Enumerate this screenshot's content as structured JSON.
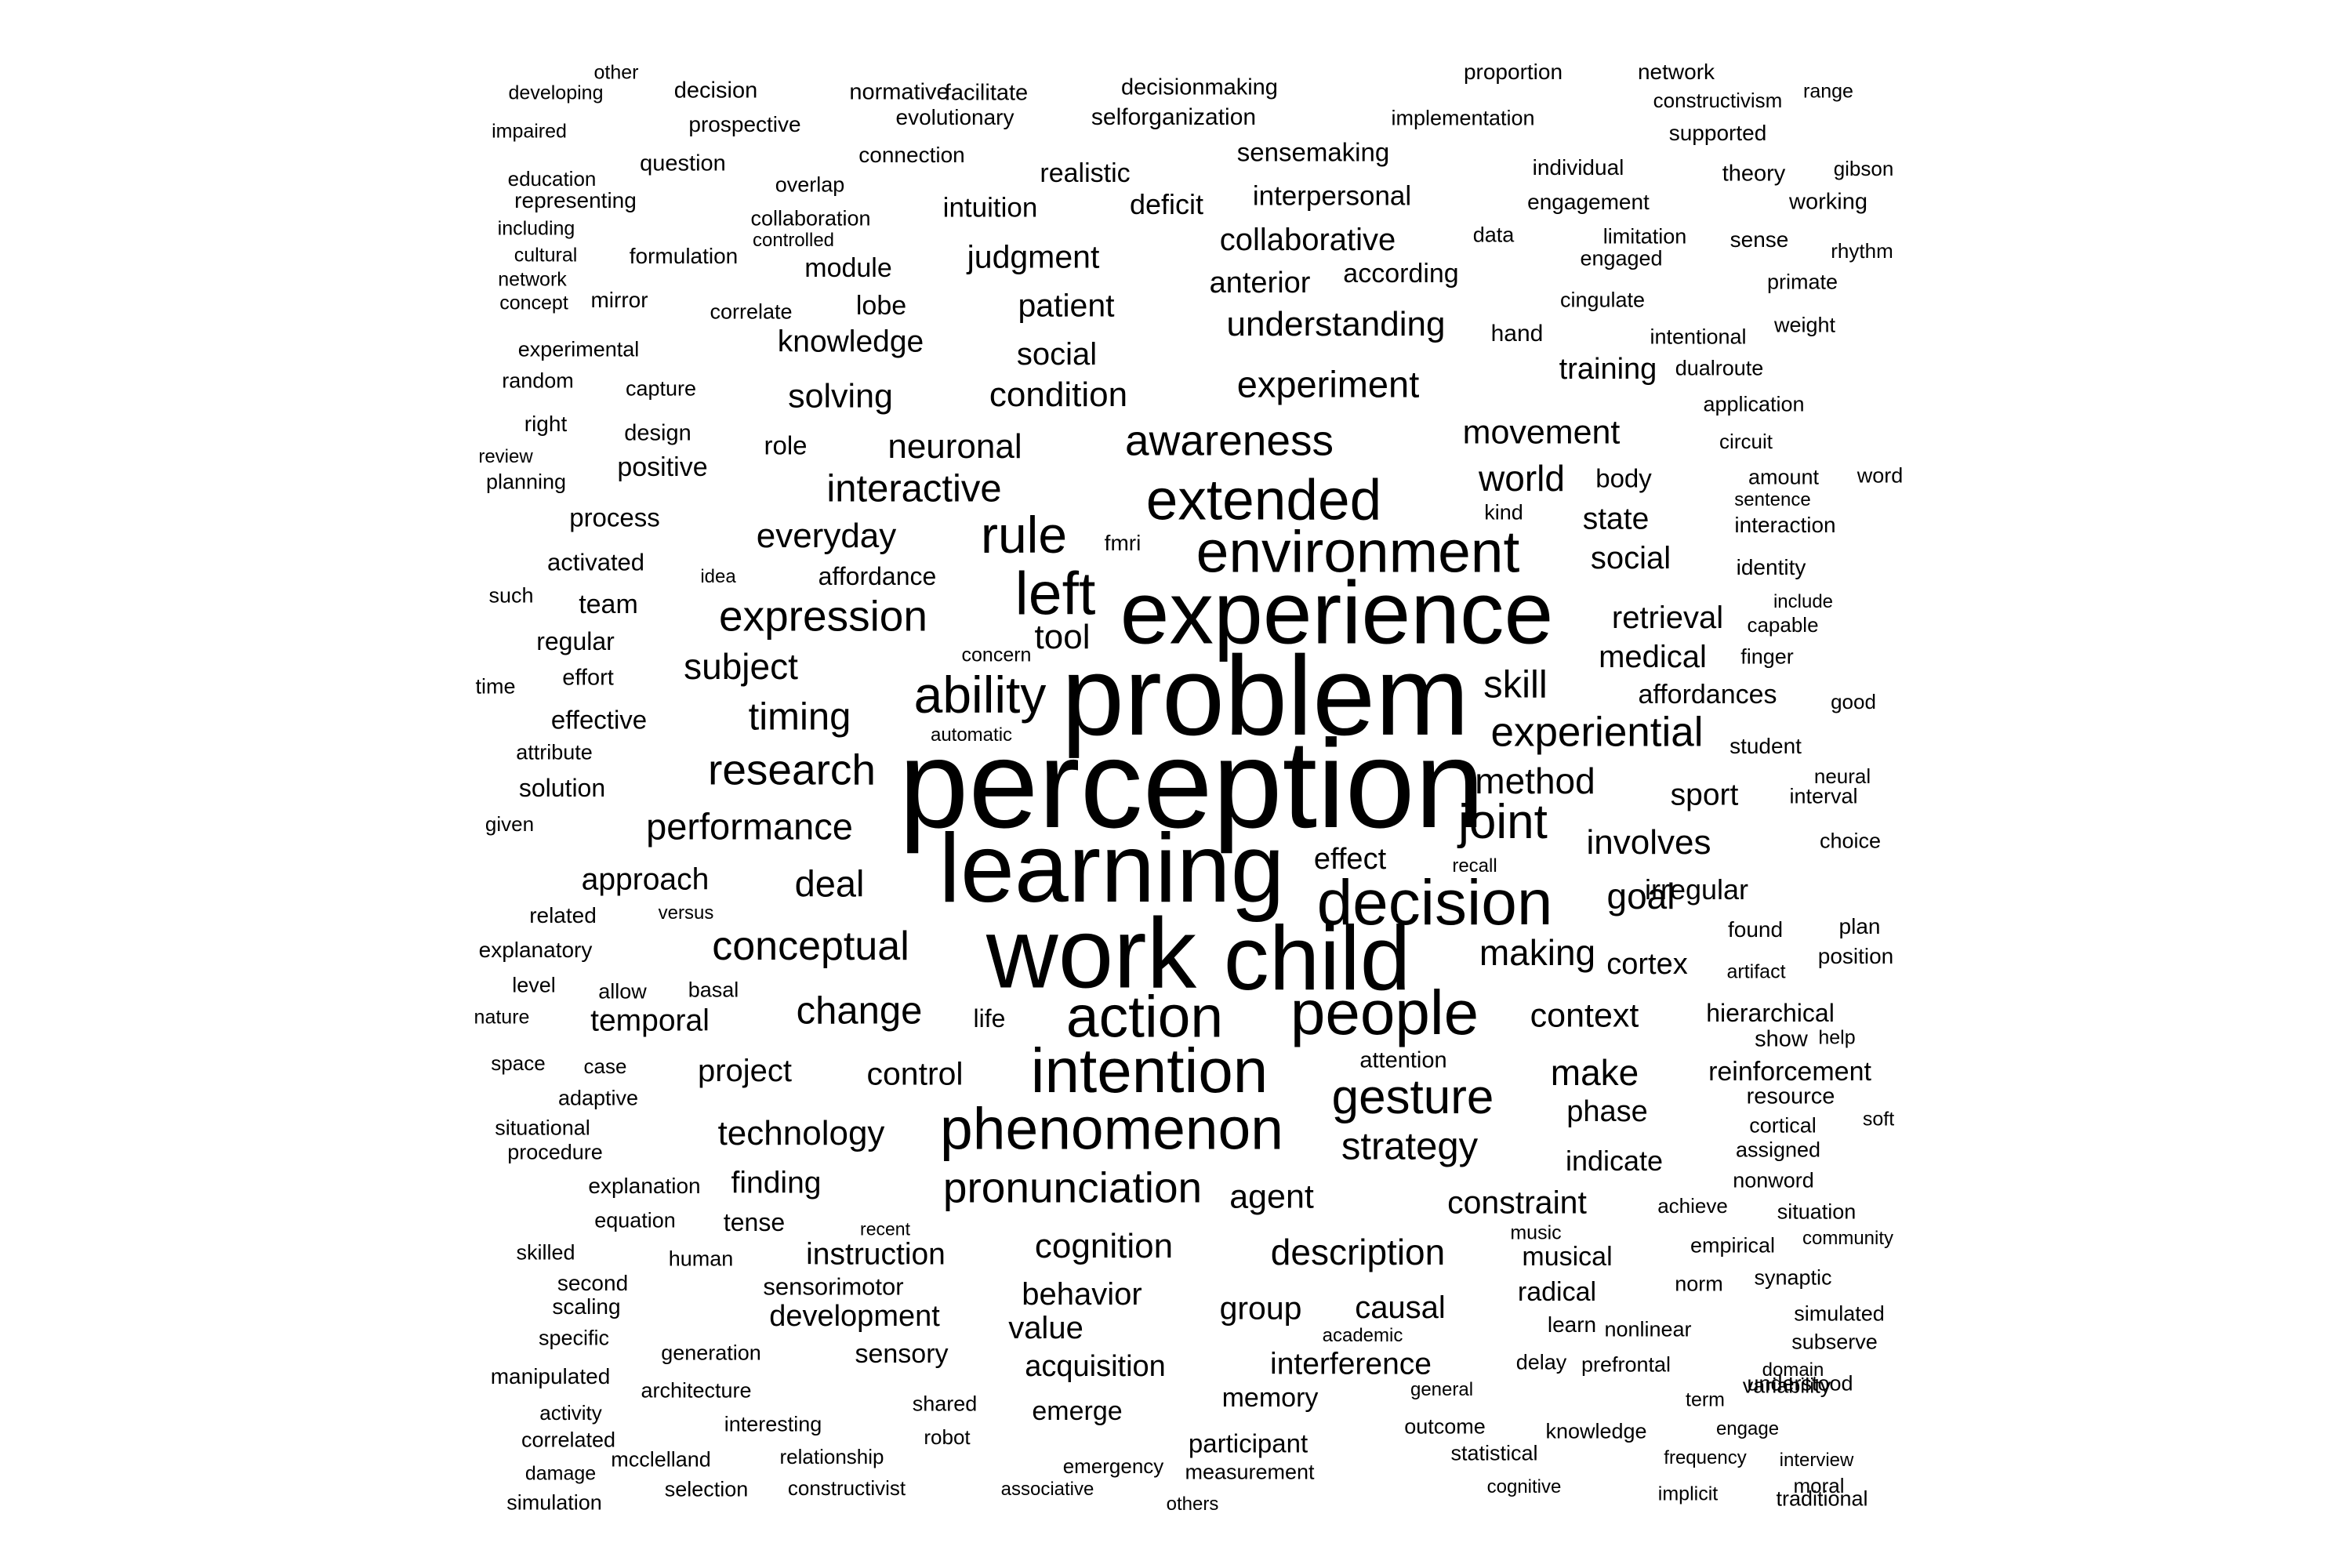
{
  "words": [
    {
      "text": "perception",
      "weight": 100
    },
    {
      "text": "learning",
      "weight": 88
    },
    {
      "text": "problem",
      "weight": 95
    },
    {
      "text": "work",
      "weight": 89
    },
    {
      "text": "child",
      "weight": 85
    },
    {
      "text": "experience",
      "weight": 84
    },
    {
      "text": "phenomenon",
      "weight": 68
    },
    {
      "text": "action",
      "weight": 68
    },
    {
      "text": "intention",
      "weight": 70
    },
    {
      "text": "people",
      "weight": 70
    },
    {
      "text": "decision",
      "weight": 71
    },
    {
      "text": "environment",
      "weight": 68
    },
    {
      "text": "extended",
      "weight": 67
    },
    {
      "text": "left",
      "weight": 69
    },
    {
      "text": "ability",
      "weight": 63
    },
    {
      "text": "rule",
      "weight": 63
    },
    {
      "text": "joint",
      "weight": 61
    },
    {
      "text": "gesture",
      "weight": 61
    },
    {
      "text": "pronunciation",
      "weight": 57
    },
    {
      "text": "awareness",
      "weight": 57
    },
    {
      "text": "expression",
      "weight": 57
    },
    {
      "text": "experiential",
      "weight": 56
    },
    {
      "text": "research",
      "weight": 57
    },
    {
      "text": "conceptual",
      "weight": 55
    },
    {
      "text": "change",
      "weight": 53
    },
    {
      "text": "strategy",
      "weight": 53
    },
    {
      "text": "performance",
      "weight": 52
    },
    {
      "text": "interactive",
      "weight": 53
    },
    {
      "text": "timing",
      "weight": 53
    },
    {
      "text": "technology",
      "weight": 50
    },
    {
      "text": "cognition",
      "weight": 50
    },
    {
      "text": "description",
      "weight": 51
    },
    {
      "text": "experiment",
      "weight": 52
    },
    {
      "text": "understanding",
      "weight": 50
    },
    {
      "text": "subject",
      "weight": 51
    },
    {
      "text": "method",
      "weight": 51
    },
    {
      "text": "neuronal",
      "weight": 50
    },
    {
      "text": "everyday",
      "weight": 50
    },
    {
      "text": "condition",
      "weight": 50
    },
    {
      "text": "solving",
      "weight": 49
    },
    {
      "text": "skill",
      "weight": 53
    },
    {
      "text": "deal",
      "weight": 52
    },
    {
      "text": "making",
      "weight": 51
    },
    {
      "text": "context",
      "weight": 49
    },
    {
      "text": "make",
      "weight": 51
    },
    {
      "text": "goal",
      "weight": 51
    },
    {
      "text": "involves",
      "weight": 50
    },
    {
      "text": "movement",
      "weight": 49
    },
    {
      "text": "world",
      "weight": 51
    },
    {
      "text": "control",
      "weight": 48
    },
    {
      "text": "project",
      "weight": 47
    },
    {
      "text": "agent",
      "weight": 49
    },
    {
      "text": "constraint",
      "weight": 48
    },
    {
      "text": "behavior",
      "weight": 47
    },
    {
      "text": "value",
      "weight": 47
    },
    {
      "text": "group",
      "weight": 48
    },
    {
      "text": "causal",
      "weight": 47
    },
    {
      "text": "judgment",
      "weight": 48
    },
    {
      "text": "patient",
      "weight": 48
    },
    {
      "text": "social",
      "weight": 47
    },
    {
      "text": "collaborative",
      "weight": 47
    },
    {
      "text": "knowledge",
      "weight": 46
    },
    {
      "text": "approach",
      "weight": 46
    },
    {
      "text": "temporal",
      "weight": 46
    },
    {
      "text": "finding",
      "weight": 46
    },
    {
      "text": "instruction",
      "weight": 46
    },
    {
      "text": "development",
      "weight": 45
    },
    {
      "text": "acquisition",
      "weight": 45
    },
    {
      "text": "interference",
      "weight": 46
    },
    {
      "text": "medical",
      "weight": 47
    },
    {
      "text": "retrieval",
      "weight": 47
    },
    {
      "text": "social",
      "weight": 47
    },
    {
      "text": "state",
      "weight": 46
    },
    {
      "text": "training",
      "weight": 45
    },
    {
      "text": "anterior",
      "weight": 45
    },
    {
      "text": "tool",
      "weight": 50
    },
    {
      "text": "effect",
      "weight": 45
    },
    {
      "text": "sport",
      "weight": 46
    },
    {
      "text": "irregular",
      "weight": 44
    },
    {
      "text": "cortex",
      "weight": 45
    },
    {
      "text": "phase",
      "weight": 45
    },
    {
      "text": "indicate",
      "weight": 44
    },
    {
      "text": "musical",
      "weight": 42
    },
    {
      "text": "radical",
      "weight": 42
    },
    {
      "text": "reinforcement",
      "weight": 42
    },
    {
      "text": "hierarchical",
      "weight": 40
    },
    {
      "text": "affordances",
      "weight": 42
    },
    {
      "text": "emerge",
      "weight": 42
    },
    {
      "text": "memory",
      "weight": 42
    },
    {
      "text": "participant",
      "weight": 41
    },
    {
      "text": "sensory",
      "weight": 42
    },
    {
      "text": "intuition",
      "weight": 43
    },
    {
      "text": "deficit",
      "weight": 44
    },
    {
      "text": "interpersonal",
      "weight": 43
    },
    {
      "text": "sensemaking",
      "weight": 41
    },
    {
      "text": "realistic",
      "weight": 42
    },
    {
      "text": "module",
      "weight": 42
    },
    {
      "text": "lobe",
      "weight": 42
    },
    {
      "text": "according",
      "weight": 42
    },
    {
      "text": "role",
      "weight": 41
    },
    {
      "text": "positive",
      "weight": 42
    },
    {
      "text": "process",
      "weight": 41
    },
    {
      "text": "team",
      "weight": 42
    },
    {
      "text": "activated",
      "weight": 39
    },
    {
      "text": "affordance",
      "weight": 40
    },
    {
      "text": "regular",
      "weight": 40
    },
    {
      "text": "effective",
      "weight": 41
    },
    {
      "text": "solution",
      "weight": 40
    },
    {
      "text": "tense",
      "weight": 40
    },
    {
      "text": "sensorimotor",
      "weight": 39
    },
    {
      "text": "life",
      "weight": 40
    },
    {
      "text": "body",
      "weight": 41
    },
    {
      "text": "selforganization",
      "weight": 38
    },
    {
      "text": "decisionmaking",
      "weight": 37
    },
    {
      "text": "proportion",
      "weight": 36
    },
    {
      "text": "network",
      "weight": 36
    },
    {
      "text": "constructivism",
      "weight": 34
    },
    {
      "text": "range",
      "weight": 33
    },
    {
      "text": "other",
      "weight": 33
    },
    {
      "text": "developing",
      "weight": 33
    },
    {
      "text": "decision",
      "weight": 37
    },
    {
      "text": "normative",
      "weight": 37
    },
    {
      "text": "facilitate",
      "weight": 37
    },
    {
      "text": "impaired",
      "weight": 33
    },
    {
      "text": "prospective",
      "weight": 36
    },
    {
      "text": "evolutionary",
      "weight": 36
    },
    {
      "text": "implementation",
      "weight": 35
    },
    {
      "text": "supported",
      "weight": 36
    },
    {
      "text": "education",
      "weight": 34
    },
    {
      "text": "question",
      "weight": 37
    },
    {
      "text": "connection",
      "weight": 36
    },
    {
      "text": "individual",
      "weight": 36
    },
    {
      "text": "theory",
      "weight": 37
    },
    {
      "text": "gibson",
      "weight": 34
    },
    {
      "text": "representing",
      "weight": 36
    },
    {
      "text": "overlap",
      "weight": 35
    },
    {
      "text": "engagement",
      "weight": 36
    },
    {
      "text": "working",
      "weight": 37
    },
    {
      "text": "including",
      "weight": 33
    },
    {
      "text": "collaboration",
      "weight": 35
    },
    {
      "text": "data",
      "weight": 35
    },
    {
      "text": "limitation",
      "weight": 35
    },
    {
      "text": "sense",
      "weight": 36
    },
    {
      "text": "rhythm",
      "weight": 34
    },
    {
      "text": "cultural",
      "weight": 33
    },
    {
      "text": "formulation",
      "weight": 36
    },
    {
      "text": "controlled",
      "weight": 32
    },
    {
      "text": "engaged",
      "weight": 35
    },
    {
      "text": "primate",
      "weight": 35
    },
    {
      "text": "network",
      "weight": 33
    },
    {
      "text": "concept",
      "weight": 33
    },
    {
      "text": "mirror",
      "weight": 36
    },
    {
      "text": "correlate",
      "weight": 35
    },
    {
      "text": "cingulate",
      "weight": 35
    },
    {
      "text": "hand",
      "weight": 38
    },
    {
      "text": "intentional",
      "weight": 35
    },
    {
      "text": "weight",
      "weight": 35
    },
    {
      "text": "experimental",
      "weight": 35
    },
    {
      "text": "random",
      "weight": 35
    },
    {
      "text": "capture",
      "weight": 35
    },
    {
      "text": "dualroute",
      "weight": 35
    },
    {
      "text": "application",
      "weight": 35
    },
    {
      "text": "right",
      "weight": 36
    },
    {
      "text": "design",
      "weight": 37
    },
    {
      "text": "circuit",
      "weight": 34
    },
    {
      "text": "review",
      "weight": 32
    },
    {
      "text": "planning",
      "weight": 35
    },
    {
      "text": "amount",
      "weight": 35
    },
    {
      "text": "word",
      "weight": 35
    },
    {
      "text": "sentence",
      "weight": 32
    },
    {
      "text": "kind",
      "weight": 35
    },
    {
      "text": "interaction",
      "weight": 36
    },
    {
      "text": "fmri",
      "weight": 36
    },
    {
      "text": "identity",
      "weight": 36
    },
    {
      "text": "idea",
      "weight": 32
    },
    {
      "text": "such",
      "weight": 35
    },
    {
      "text": "include",
      "weight": 32
    },
    {
      "text": "capable",
      "weight": 34
    },
    {
      "text": "concern",
      "weight": 33
    },
    {
      "text": "finger",
      "weight": 35
    },
    {
      "text": "time",
      "weight": 35
    },
    {
      "text": "effort",
      "weight": 37
    },
    {
      "text": "good",
      "weight": 34
    },
    {
      "text": "automatic",
      "weight": 32
    },
    {
      "text": "attribute",
      "weight": 35
    },
    {
      "text": "student",
      "weight": 36
    },
    {
      "text": "neural",
      "weight": 34
    },
    {
      "text": "interval",
      "weight": 35
    },
    {
      "text": "given",
      "weight": 34
    },
    {
      "text": "choice",
      "weight": 35
    },
    {
      "text": "recall",
      "weight": 32
    },
    {
      "text": "related",
      "weight": 36
    },
    {
      "text": "versus",
      "weight": 32
    },
    {
      "text": "found",
      "weight": 36
    },
    {
      "text": "plan",
      "weight": 36
    },
    {
      "text": "artifact",
      "weight": 33
    },
    {
      "text": "explanatory",
      "weight": 36
    },
    {
      "text": "position",
      "weight": 36
    },
    {
      "text": "level",
      "weight": 35
    },
    {
      "text": "allow",
      "weight": 35
    },
    {
      "text": "basal",
      "weight": 35
    },
    {
      "text": "nature",
      "weight": 33
    },
    {
      "text": "show",
      "weight": 37
    },
    {
      "text": "help",
      "weight": 33
    },
    {
      "text": "attention",
      "weight": 37
    },
    {
      "text": "space",
      "weight": 34
    },
    {
      "text": "case",
      "weight": 34
    },
    {
      "text": "adaptive",
      "weight": 35
    },
    {
      "text": "resource",
      "weight": 37
    },
    {
      "text": "situational",
      "weight": 35
    },
    {
      "text": "cortical",
      "weight": 35
    },
    {
      "text": "soft",
      "weight": 33
    },
    {
      "text": "procedure",
      "weight": 35
    },
    {
      "text": "assigned",
      "weight": 35
    },
    {
      "text": "explanation",
      "weight": 36
    },
    {
      "text": "nonword",
      "weight": 35
    },
    {
      "text": "achieve",
      "weight": 34
    },
    {
      "text": "situation",
      "weight": 35
    },
    {
      "text": "equation",
      "weight": 35
    },
    {
      "text": "recent",
      "weight": 31
    },
    {
      "text": "music",
      "weight": 33
    },
    {
      "text": "skilled",
      "weight": 35
    },
    {
      "text": "human",
      "weight": 35
    },
    {
      "text": "empirical",
      "weight": 35
    },
    {
      "text": "community",
      "weight": 32
    },
    {
      "text": "second",
      "weight": 36
    },
    {
      "text": "norm",
      "weight": 35
    },
    {
      "text": "synaptic",
      "weight": 35
    },
    {
      "text": "scaling",
      "weight": 36
    },
    {
      "text": "learn",
      "weight": 36
    },
    {
      "text": "nonlinear",
      "weight": 35
    },
    {
      "text": "simulated",
      "weight": 35
    },
    {
      "text": "specific",
      "weight": 35
    },
    {
      "text": "academic",
      "weight": 32
    },
    {
      "text": "subserve",
      "weight": 35
    },
    {
      "text": "generation",
      "weight": 35
    },
    {
      "text": "delay",
      "weight": 35
    },
    {
      "text": "prefrontal",
      "weight": 35
    },
    {
      "text": "domain",
      "weight": 32
    },
    {
      "text": "understood",
      "weight": 35
    },
    {
      "text": "manipulated",
      "weight": 36
    },
    {
      "text": "architecture",
      "weight": 35
    },
    {
      "text": "general",
      "weight": 32
    },
    {
      "text": "variability",
      "weight": 35
    },
    {
      "text": "activity",
      "weight": 34
    },
    {
      "text": "shared",
      "weight": 35
    },
    {
      "text": "term",
      "weight": 33
    },
    {
      "text": "interesting",
      "weight": 35
    },
    {
      "text": "robot",
      "weight": 34
    },
    {
      "text": "correlated",
      "weight": 35
    },
    {
      "text": "outcome",
      "weight": 35
    },
    {
      "text": "knowledge",
      "weight": 35
    },
    {
      "text": "engage",
      "weight": 32
    },
    {
      "text": "damage",
      "weight": 33
    },
    {
      "text": "mcclelland",
      "weight": 35
    },
    {
      "text": "relationship",
      "weight": 34
    },
    {
      "text": "statistical",
      "weight": 35
    },
    {
      "text": "frequency",
      "weight": 32
    },
    {
      "text": "interview",
      "weight": 32
    },
    {
      "text": "simulation",
      "weight": 35
    },
    {
      "text": "selection",
      "weight": 35
    },
    {
      "text": "constructivist",
      "weight": 34
    },
    {
      "text": "emergency",
      "weight": 34
    },
    {
      "text": "measurement",
      "weight": 35
    },
    {
      "text": "cognitive",
      "weight": 32
    },
    {
      "text": "implicit",
      "weight": 33
    },
    {
      "text": "moral",
      "weight": 34
    },
    {
      "text": "traditional",
      "weight": 35
    },
    {
      "text": "associative",
      "weight": 32
    },
    {
      "text": "others",
      "weight": 32
    }
  ]
}
